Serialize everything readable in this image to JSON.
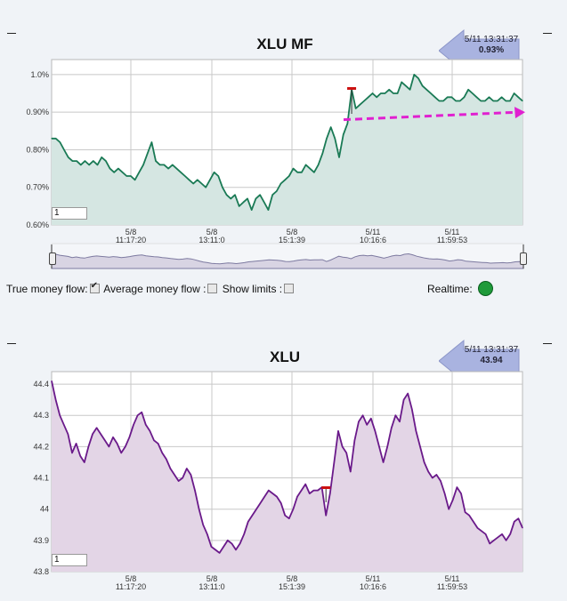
{
  "mf_panel": {
    "title": "XLU MF",
    "badge_time": "5/11 13:31:37",
    "badge_value": "0.93%",
    "input_value": "1"
  },
  "price_panel": {
    "title": "XLU",
    "badge_time": "5/11 13:31:37",
    "badge_value": "43.94",
    "input_value": "1"
  },
  "controls": {
    "true_money_flow": "True money flow:",
    "average_money_flow": "Average money flow :",
    "show_limits": "Show limits :",
    "realtime": "Realtime:",
    "true_money_flow_checked": true,
    "average_money_flow_checked": false,
    "show_limits_checked": false
  },
  "colors": {
    "mf_line": "#1a7a55",
    "mf_fill": "#d5e6e2",
    "price_line": "#6a1a8a",
    "price_fill": "#e3d5e6",
    "arrow": "#e020d0",
    "realtime_dot": "#1f9a3a",
    "badge_arrow": "#a9b3e0"
  },
  "chart_data": [
    {
      "type": "area",
      "title": "XLU MF",
      "x_ticks": [
        {
          "date": "5/8",
          "time": "11:17:20"
        },
        {
          "date": "5/8",
          "time": "13:11:0"
        },
        {
          "date": "5/8",
          "time": "15:1:39"
        },
        {
          "date": "5/11",
          "time": "10:16:6"
        },
        {
          "date": "5/11",
          "time": "11:59:53"
        }
      ],
      "y_ticks": [
        "0.60%",
        "0.70%",
        "0.80%",
        "0.90%",
        "1.0%"
      ],
      "ylim": [
        0.6,
        1.04
      ],
      "grid": true,
      "annotations": [
        "dashed magenta upward arrow from ~0.88% to ~0.90% (rising trend)"
      ],
      "series": [
        {
          "values": [
            0.83,
            0.83,
            0.82,
            0.8,
            0.78,
            0.77,
            0.77,
            0.76,
            0.77,
            0.76,
            0.77,
            0.76,
            0.78,
            0.77,
            0.75,
            0.74,
            0.75,
            0.74,
            0.73,
            0.73,
            0.72,
            0.74,
            0.76,
            0.79,
            0.82,
            0.77,
            0.76,
            0.76,
            0.75,
            0.76,
            0.75,
            0.74,
            0.73,
            0.72,
            0.71,
            0.72,
            0.71,
            0.7,
            0.72,
            0.74,
            0.73,
            0.7,
            0.68,
            0.67,
            0.68,
            0.65,
            0.66,
            0.67,
            0.64,
            0.67,
            0.68,
            0.66,
            0.64,
            0.68,
            0.69,
            0.71,
            0.72,
            0.73,
            0.75,
            0.74,
            0.74,
            0.76,
            0.75,
            0.74,
            0.76,
            0.79,
            0.83,
            0.86,
            0.83,
            0.78,
            0.84,
            0.87,
            0.96,
            0.91,
            0.92,
            0.93,
            0.94,
            0.95,
            0.94,
            0.95,
            0.95,
            0.96,
            0.95,
            0.95,
            0.98,
            0.97,
            0.96,
            1.0,
            0.99,
            0.97,
            0.96,
            0.95,
            0.94,
            0.93,
            0.93,
            0.94,
            0.94,
            0.93,
            0.93,
            0.94,
            0.96,
            0.95,
            0.94,
            0.93,
            0.93,
            0.94,
            0.93,
            0.93,
            0.94,
            0.93,
            0.93,
            0.95,
            0.94,
            0.93
          ]
        }
      ]
    },
    {
      "type": "area",
      "title": "XLU",
      "x_ticks": [
        {
          "date": "5/8",
          "time": "11:17:20"
        },
        {
          "date": "5/8",
          "time": "13:11:0"
        },
        {
          "date": "5/8",
          "time": "15:1:39"
        },
        {
          "date": "5/11",
          "time": "10:16:6"
        },
        {
          "date": "5/11",
          "time": "11:59:53"
        }
      ],
      "y_ticks": [
        "43.8",
        "43.9",
        "44",
        "44.1",
        "44.2",
        "44.3",
        "44.4"
      ],
      "ylim": [
        43.8,
        44.44
      ],
      "grid": true,
      "series": [
        {
          "values": [
            44.41,
            44.35,
            44.3,
            44.27,
            44.24,
            44.18,
            44.21,
            44.17,
            44.15,
            44.2,
            44.24,
            44.26,
            44.24,
            44.22,
            44.2,
            44.23,
            44.21,
            44.18,
            44.2,
            44.23,
            44.27,
            44.3,
            44.31,
            44.27,
            44.25,
            44.22,
            44.21,
            44.18,
            44.16,
            44.13,
            44.11,
            44.09,
            44.1,
            44.13,
            44.11,
            44.06,
            44.0,
            43.95,
            43.92,
            43.88,
            43.87,
            43.86,
            43.88,
            43.9,
            43.89,
            43.87,
            43.89,
            43.92,
            43.96,
            43.98,
            44.0,
            44.02,
            44.04,
            44.06,
            44.05,
            44.04,
            44.02,
            43.98,
            43.97,
            44.0,
            44.04,
            44.06,
            44.08,
            44.05,
            44.06,
            44.06,
            44.07,
            43.98,
            44.05,
            44.15,
            44.25,
            44.2,
            44.18,
            44.12,
            44.22,
            44.28,
            44.3,
            44.27,
            44.29,
            44.25,
            44.2,
            44.15,
            44.2,
            44.26,
            44.3,
            44.28,
            44.35,
            44.37,
            44.32,
            44.25,
            44.2,
            44.15,
            44.12,
            44.1,
            44.11,
            44.09,
            44.05,
            44.0,
            44.03,
            44.07,
            44.05,
            43.99,
            43.98,
            43.96,
            43.94,
            43.93,
            43.92,
            43.89,
            43.9,
            43.91,
            43.92,
            43.9,
            43.92,
            43.96,
            43.97,
            43.94
          ]
        }
      ]
    }
  ]
}
